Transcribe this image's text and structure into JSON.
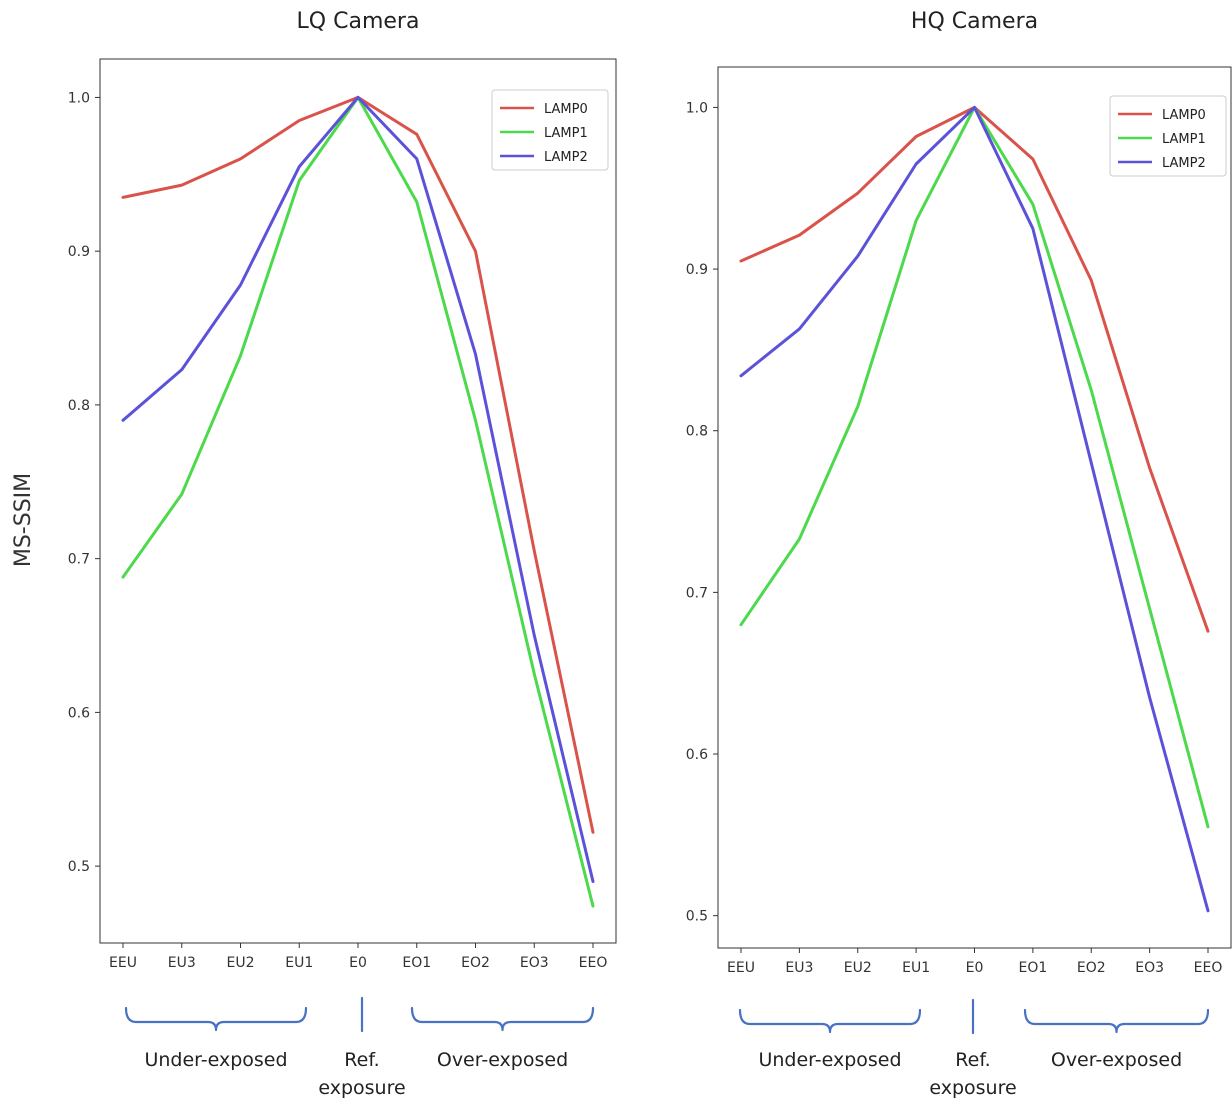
{
  "figure": {
    "ylabel": "MS-SSIM"
  },
  "chart_data": [
    {
      "type": "line",
      "title": "LQ Camera",
      "xlabel": "",
      "ylabel": "MS-SSIM",
      "categories": [
        "EEU",
        "EU3",
        "EU2",
        "EU1",
        "E0",
        "EO1",
        "EO2",
        "EO3",
        "EEO"
      ],
      "y_ticks": [
        "0.5",
        "0.6",
        "0.7",
        "0.8",
        "0.9",
        "1.0"
      ],
      "ylim": [
        0.45,
        1.025
      ],
      "legend": "top-right",
      "grid": false,
      "series": [
        {
          "name": "LAMP0",
          "color": "#d9534a",
          "values": [
            0.935,
            0.943,
            0.96,
            0.985,
            1.0,
            0.976,
            0.9,
            0.705,
            0.522
          ]
        },
        {
          "name": "LAMP1",
          "color": "#4cd94c",
          "values": [
            0.688,
            0.742,
            0.832,
            0.946,
            1.0,
            0.932,
            0.79,
            0.625,
            0.474
          ]
        },
        {
          "name": "LAMP2",
          "color": "#5b52d9",
          "values": [
            0.79,
            0.823,
            0.878,
            0.955,
            1.0,
            0.96,
            0.833,
            0.65,
            0.49
          ]
        }
      ],
      "groups": [
        {
          "label": "Under-exposed"
        },
        {
          "label": "Ref.",
          "label2": "exposure"
        },
        {
          "label": "Over-exposed"
        }
      ]
    },
    {
      "type": "line",
      "title": "HQ Camera",
      "xlabel": "",
      "ylabel": "",
      "categories": [
        "EEU",
        "EU3",
        "EU2",
        "EU1",
        "E0",
        "EO1",
        "EO2",
        "EO3",
        "EEO"
      ],
      "y_ticks": [
        "0.5",
        "0.6",
        "0.7",
        "0.8",
        "0.9",
        "1.0"
      ],
      "ylim": [
        0.48,
        1.025
      ],
      "legend": "top-right",
      "grid": false,
      "series": [
        {
          "name": "LAMP0",
          "color": "#d9534a",
          "values": [
            0.905,
            0.921,
            0.947,
            0.982,
            1.0,
            0.968,
            0.893,
            0.777,
            0.676
          ]
        },
        {
          "name": "LAMP1",
          "color": "#4cd94c",
          "values": [
            0.68,
            0.733,
            0.815,
            0.93,
            1.0,
            0.94,
            0.825,
            0.69,
            0.555
          ]
        },
        {
          "name": "LAMP2",
          "color": "#5b52d9",
          "values": [
            0.834,
            0.863,
            0.908,
            0.965,
            1.0,
            0.925,
            0.78,
            0.635,
            0.503
          ]
        }
      ],
      "groups": [
        {
          "label": "Under-exposed"
        },
        {
          "label": "Ref.",
          "label2": "exposure"
        },
        {
          "label": "Over-exposed"
        }
      ]
    }
  ]
}
